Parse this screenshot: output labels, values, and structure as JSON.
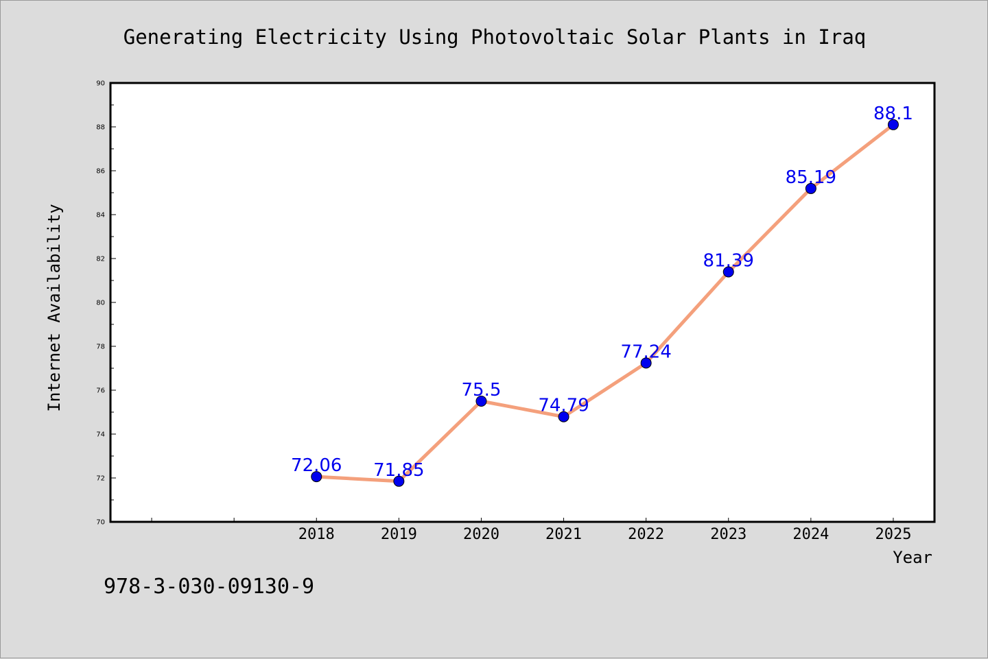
{
  "chart_data": {
    "type": "line",
    "title": "Generating Electricity Using Photovoltaic Solar Plants in Iraq",
    "xlabel": "Year",
    "ylabel": "Internet Availability",
    "categories": [
      "2018",
      "2019",
      "2020",
      "2021",
      "2022",
      "2023",
      "2024",
      "2025"
    ],
    "series": [
      {
        "values": [
          72.06,
          71.85,
          75.5,
          74.79,
          77.24,
          81.39,
          85.19,
          88.1
        ]
      }
    ],
    "data_labels": [
      "72.06",
      "71.85",
      "75.5",
      "74.79",
      "77.24",
      "81.39",
      "85.19",
      "88.1"
    ],
    "yticks": [
      "70",
      "72",
      "74",
      "76",
      "78",
      "80",
      "82",
      "84",
      "86",
      "88",
      "90"
    ],
    "ylim": [
      70,
      90
    ],
    "x_slot_count": 10,
    "grid": false,
    "legend": "none",
    "line_color": "#f4a07c",
    "marker_color": "#0000ee",
    "label_color": "#0000ee"
  },
  "footer_text": "978-3-030-09130-9"
}
